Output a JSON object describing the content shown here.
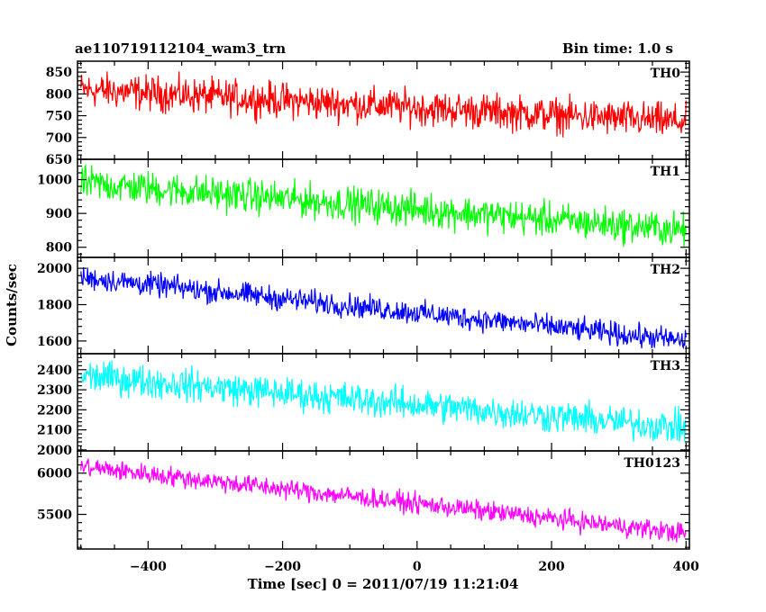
{
  "chart_data": {
    "type": "line",
    "title_left": "ae110719112104_wam3_trn",
    "title_right": "Bin time: 1.0 s",
    "xlabel": "Time [sec] 0 = 2011/07/19 11:21:04",
    "ylabel": "Counts/sec",
    "x_range": [
      -505,
      405
    ],
    "x_ticks": [
      -400,
      -200,
      0,
      200,
      400
    ],
    "x_sampling": {
      "start": -500,
      "end": 400,
      "step": 1
    },
    "panels": [
      {
        "name": "TH0",
        "color": "#ff0000",
        "ylim": [
          650,
          875
        ],
        "yticks": [
          650,
          700,
          750,
          800,
          850
        ],
        "trend": {
          "x": [
            -500,
            400
          ],
          "y": [
            810,
            735
          ]
        },
        "noise_halfwidth": 60
      },
      {
        "name": "TH1",
        "color": "#00ff00",
        "ylim": [
          770,
          1060
        ],
        "yticks": [
          800,
          900,
          1000
        ],
        "trend": {
          "x": [
            -500,
            400
          ],
          "y": [
            990,
            850
          ]
        },
        "noise_halfwidth": 75
      },
      {
        "name": "TH2",
        "color": "#0000ff",
        "ylim": [
          1530,
          2060
        ],
        "yticks": [
          1600,
          1800,
          2000
        ],
        "trend": {
          "x": [
            -500,
            400
          ],
          "y": [
            1950,
            1600
          ]
        },
        "noise_halfwidth": 95
      },
      {
        "name": "TH3",
        "color": "#00ffff",
        "ylim": [
          1995,
          2480
        ],
        "yticks": [
          2000,
          2100,
          2200,
          2300,
          2400
        ],
        "trend": {
          "x": [
            -500,
            400
          ],
          "y": [
            2370,
            2110
          ]
        },
        "noise_halfwidth": 120
      },
      {
        "name": "TH0123",
        "color": "#ff00ff",
        "ylim": [
          5080,
          6270
        ],
        "yticks": [
          5500,
          6000
        ],
        "trend": {
          "x": [
            -500,
            400
          ],
          "y": [
            6080,
            5270
          ]
        },
        "noise_halfwidth": 180
      }
    ]
  }
}
